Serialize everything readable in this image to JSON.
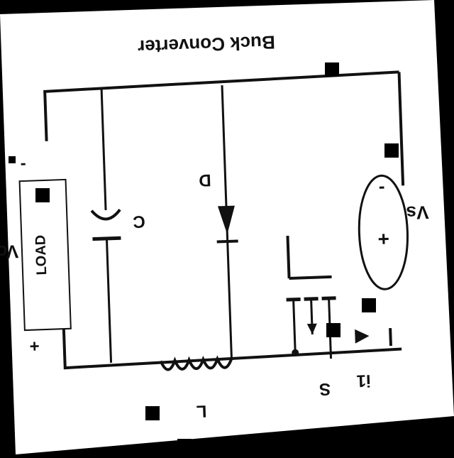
{
  "diagram": {
    "title": "Buck Converter",
    "labels": {
      "source": "Vs",
      "source_plus": "+",
      "source_minus": "-",
      "diode": "D",
      "capacitor": "C",
      "load": "LOAD",
      "output": "Vo",
      "output_plus": "+",
      "output_minus": "-",
      "inductor": "L",
      "switch": "S",
      "current": "i1"
    }
  }
}
